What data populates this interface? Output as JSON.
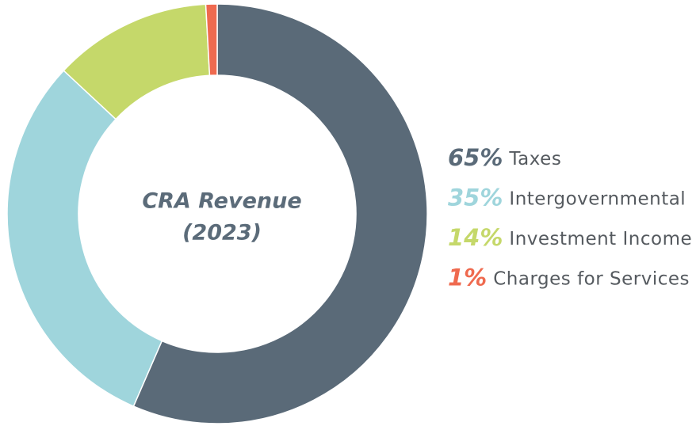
{
  "chart_data": {
    "type": "donut",
    "title": [
      "CRA Revenue",
      "(2023)"
    ],
    "categories": [
      "Taxes",
      "Intergovernmental",
      "Investment Income",
      "Charges for Services"
    ],
    "values": [
      65,
      35,
      14,
      1
    ],
    "value_labels": [
      "65%",
      "35%",
      "14%",
      "1%"
    ],
    "colors": [
      "#5a6a78",
      "#9fd5dc",
      "#c5d86a",
      "#ef6a4f"
    ]
  }
}
